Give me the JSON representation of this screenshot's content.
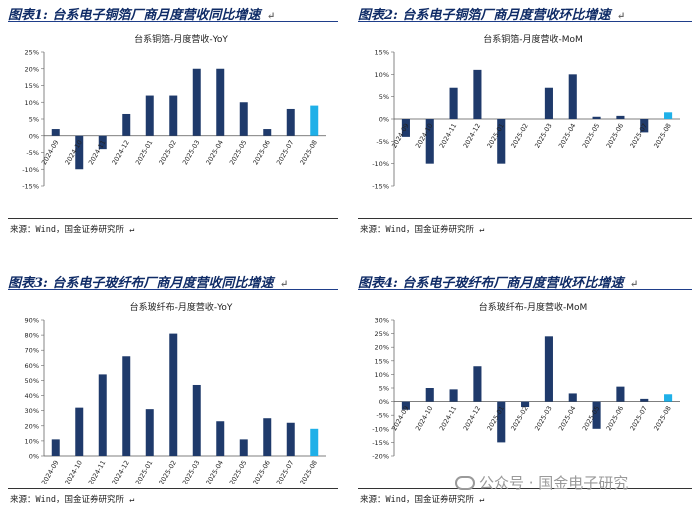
{
  "panels": [
    {
      "label": "图表1:",
      "title": "台系电子铜箔厂商月度营收同比增速",
      "source": "来源：Wind，国金证券研究所"
    },
    {
      "label": "图表2:",
      "title": "台系电子铜箔厂商月度营收环比增速",
      "source": "来源：Wind，国金证券研究所"
    },
    {
      "label": "图表3:",
      "title": "台系电子玻纤布厂商月度营收同比增速",
      "source": "来源：Wind，国金证券研究所"
    },
    {
      "label": "图表4:",
      "title": "台系电子玻纤布厂商月度营收环比增速",
      "source": "来源：Wind，国金证券研究所"
    }
  ],
  "return_mark": "↵",
  "watermark": "公众号 · 国金电子研究",
  "colors": {
    "bar": "#1f3a6b",
    "highlight": "#1fb0e8",
    "axis": "#444444",
    "title_text": "#0f2b66"
  },
  "chart_data": [
    {
      "type": "bar",
      "title": "台系铜箔-月度营收-YoY",
      "categories": [
        "2024-09",
        "2024-10",
        "2024-11",
        "2024-12",
        "2025-01",
        "2025-02",
        "2025-03",
        "2025-04",
        "2025-05",
        "2025-06",
        "2025-07",
        "2025-08"
      ],
      "values": [
        0.02,
        -0.1,
        -0.04,
        0.065,
        0.12,
        0.12,
        0.2,
        0.2,
        0.1,
        0.02,
        0.08,
        0.09
      ],
      "highlight_index": 11,
      "ylim": [
        -0.15,
        0.25
      ],
      "yticks": [
        "-15%",
        "-10%",
        "-5%",
        "0%",
        "5%",
        "10%",
        "15%",
        "20%",
        "25%"
      ]
    },
    {
      "type": "bar",
      "title": "台系铜箔-月度营收-MoM",
      "categories": [
        "2024-09",
        "2024-10",
        "2024-11",
        "2024-12",
        "2025-01",
        "2025-02",
        "2025-03",
        "2025-04",
        "2025-05",
        "2025-06",
        "2025-07",
        "2025-08"
      ],
      "values": [
        -0.04,
        -0.1,
        0.07,
        0.11,
        -0.1,
        0.0,
        0.07,
        0.1,
        0.005,
        0.007,
        -0.03,
        0.015
      ],
      "highlight_index": 11,
      "ylim": [
        -0.15,
        0.15
      ],
      "yticks": [
        "-15%",
        "-10%",
        "-5%",
        "0%",
        "5%",
        "10%",
        "15%"
      ]
    },
    {
      "type": "bar",
      "title": "台系玻纤布-月度营收-YoY",
      "categories": [
        "2024-09",
        "2024-10",
        "2024-11",
        "2024-12",
        "2025-01",
        "2025-02",
        "2025-03",
        "2025-04",
        "2025-05",
        "2025-06",
        "2025-07",
        "2025-08"
      ],
      "values": [
        0.11,
        0.32,
        0.54,
        0.66,
        0.31,
        0.81,
        0.47,
        0.23,
        0.11,
        0.25,
        0.22,
        0.18
      ],
      "highlight_index": 11,
      "ylim": [
        0,
        0.9
      ],
      "yticks": [
        "0%",
        "10%",
        "20%",
        "30%",
        "40%",
        "50%",
        "60%",
        "70%",
        "80%",
        "90%"
      ]
    },
    {
      "type": "bar",
      "title": "台系玻纤布-月度营收-MoM",
      "categories": [
        "2024-09",
        "2024-10",
        "2024-11",
        "2024-12",
        "2025-01",
        "2025-02",
        "2025-03",
        "2025-04",
        "2025-05",
        "2025-06",
        "2025-07",
        "2025-08"
      ],
      "values": [
        -0.03,
        0.05,
        0.045,
        0.13,
        -0.15,
        -0.02,
        0.24,
        0.03,
        -0.1,
        0.055,
        0.01,
        0.027
      ],
      "highlight_index": 11,
      "ylim": [
        -0.2,
        0.3
      ],
      "yticks": [
        "-20%",
        "-15%",
        "-10%",
        "-5%",
        "0%",
        "5%",
        "10%",
        "15%",
        "20%",
        "25%",
        "30%"
      ]
    }
  ]
}
